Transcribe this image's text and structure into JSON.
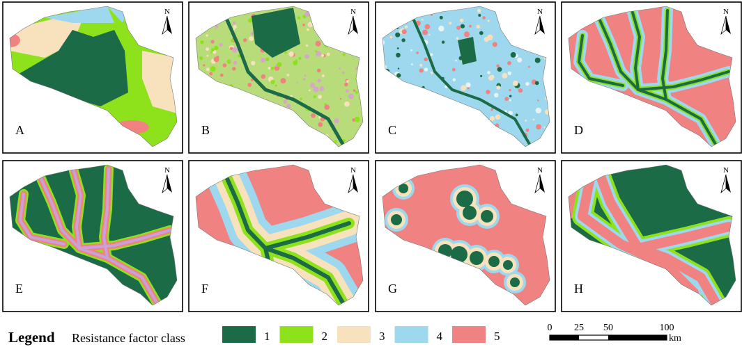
{
  "panels": [
    {
      "label": "A"
    },
    {
      "label": "B"
    },
    {
      "label": "C"
    },
    {
      "label": "D"
    },
    {
      "label": "E"
    },
    {
      "label": "F"
    },
    {
      "label": "G"
    },
    {
      "label": "H"
    }
  ],
  "north_label": "N",
  "legend": {
    "title": "Legend",
    "subtitle": "Resistance factor class",
    "classes": [
      {
        "label": "1",
        "color": "#1b6b47"
      },
      {
        "label": "2",
        "color": "#8ee21c"
      },
      {
        "label": "3",
        "color": "#f7e2bd"
      },
      {
        "label": "4",
        "color": "#9dd8ee"
      },
      {
        "label": "5",
        "color": "#f08282"
      }
    ]
  },
  "scale_bar": {
    "ticks": [
      0,
      25,
      50,
      100
    ],
    "unit": "km"
  }
}
